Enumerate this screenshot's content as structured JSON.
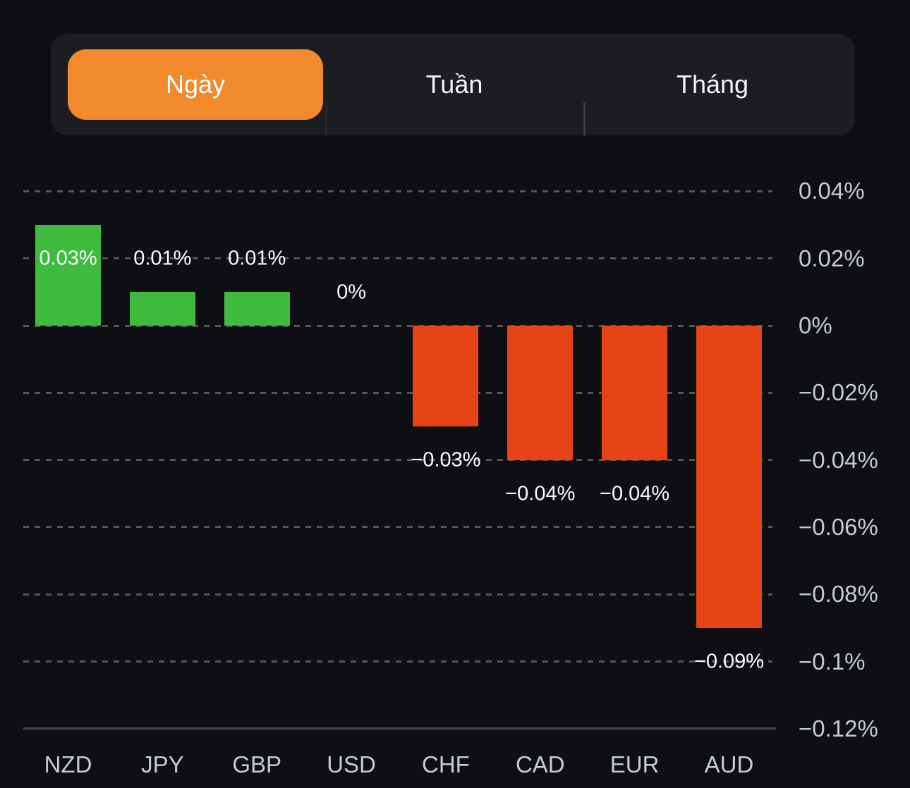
{
  "tabs": {
    "items": [
      {
        "id": "ngay",
        "label": "Ngày",
        "selected": true
      },
      {
        "id": "tuan",
        "label": "Tuần",
        "selected": false
      },
      {
        "id": "thang",
        "label": "Tháng",
        "selected": false
      }
    ]
  },
  "colors": {
    "background": "#0e0f12",
    "tab_bar_bg": "#1c1d20",
    "selected_tab_bg": "#f08a2d",
    "positive_bar": "#3fbc3f",
    "negative_bar": "#e64317",
    "grid_line": "#55565a",
    "axis_text": "#c6cad2",
    "value_text": "#fafafa"
  },
  "chart_data": {
    "type": "bar",
    "title": "",
    "categories": [
      "NZD",
      "JPY",
      "GBP",
      "USD",
      "CHF",
      "CAD",
      "EUR",
      "AUD"
    ],
    "values": [
      0.03,
      0.01,
      0.01,
      0,
      -0.03,
      -0.04,
      -0.04,
      -0.09
    ],
    "value_labels": [
      "0.03%",
      "0.01%",
      "0.01%",
      "0%",
      "−0.03%",
      "−0.04%",
      "−0.04%",
      "−0.09%"
    ],
    "unit": "%",
    "bar_colors": [
      "#3fbc3f",
      "#3fbc3f",
      "#3fbc3f",
      null,
      "#e64317",
      "#e64317",
      "#e64317",
      "#e64317"
    ],
    "y_ticks": [
      {
        "value": 0.04,
        "label": "0.04%"
      },
      {
        "value": 0.02,
        "label": "0.02%"
      },
      {
        "value": 0,
        "label": "0%"
      },
      {
        "value": -0.02,
        "label": "−0.02%"
      },
      {
        "value": -0.04,
        "label": "−0.04%"
      },
      {
        "value": -0.06,
        "label": "−0.06%"
      },
      {
        "value": -0.08,
        "label": "−0.08%"
      },
      {
        "value": -0.1,
        "label": "−0.1%"
      },
      {
        "value": -0.12,
        "label": "−0.12%"
      }
    ],
    "ylim": [
      -0.12,
      0.04
    ],
    "grid": "dashed-horizontal",
    "axis_side": "right",
    "legend": "none"
  }
}
